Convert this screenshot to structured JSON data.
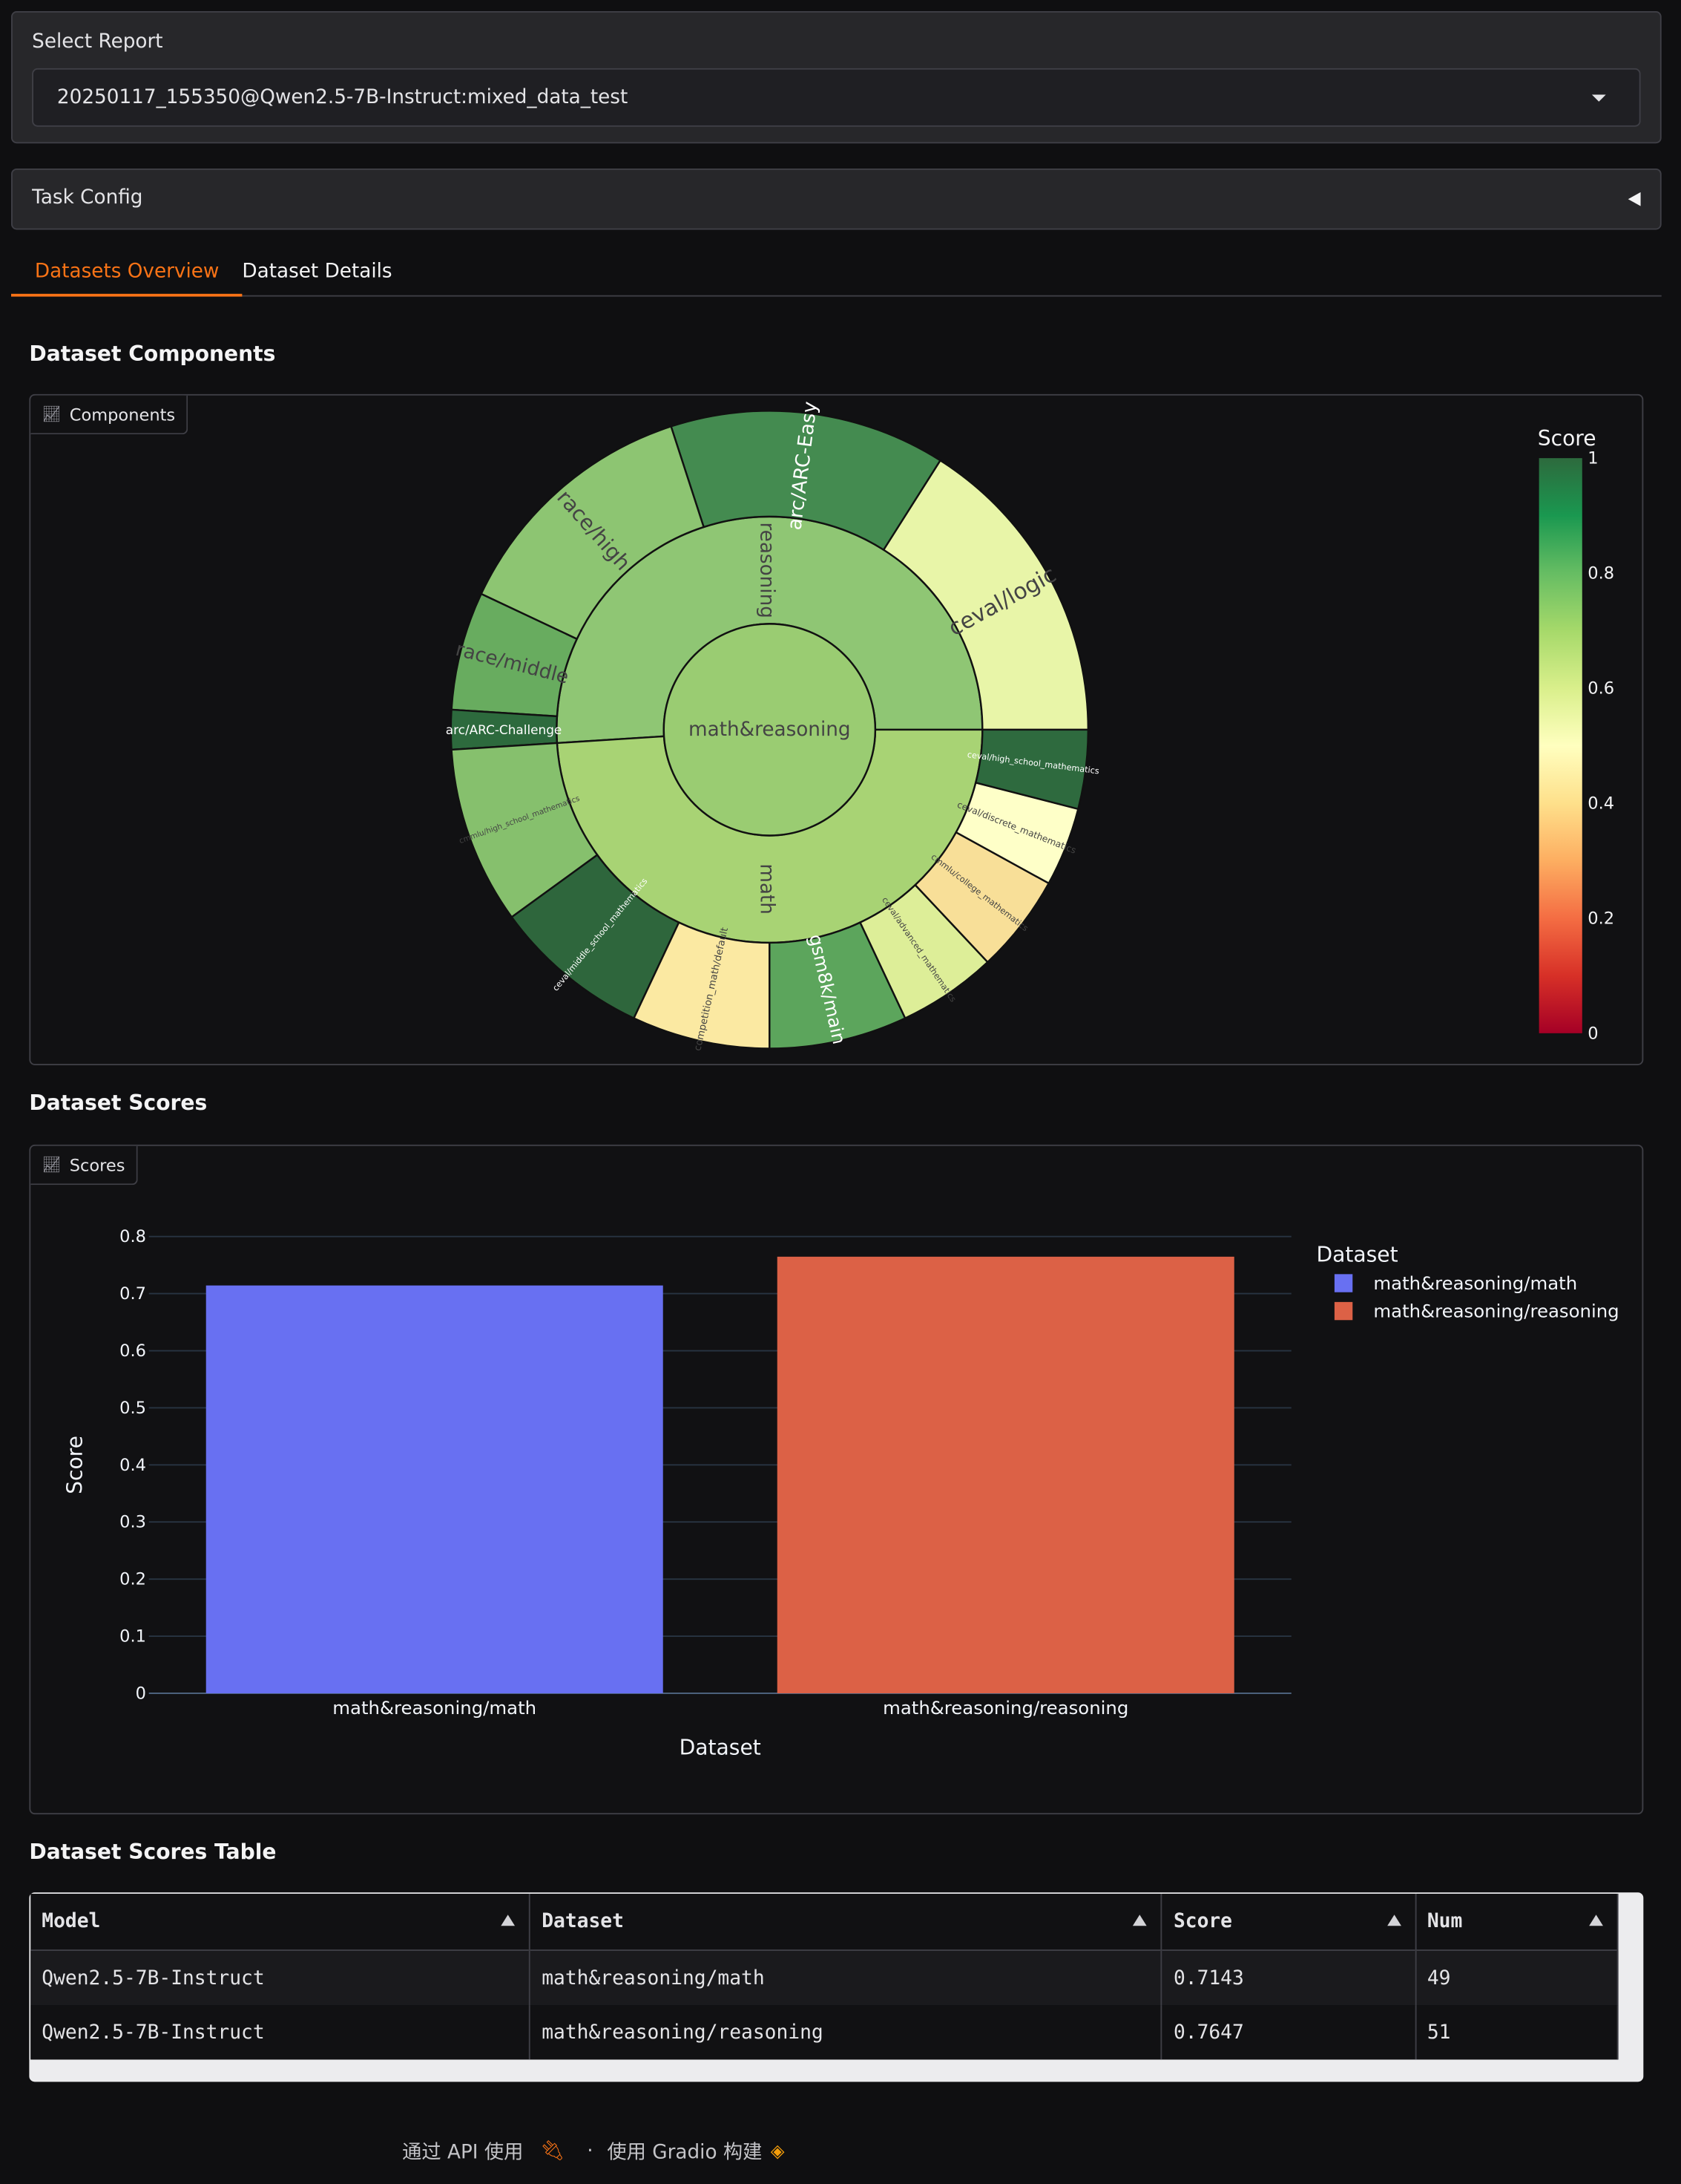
{
  "select_report": {
    "label": "Select Report",
    "value": "20250117_155350@Qwen2.5-7B-Instruct:mixed_data_test"
  },
  "task_config": {
    "label": "Task Config"
  },
  "tabs": [
    {
      "label": "Datasets Overview",
      "active": true
    },
    {
      "label": "Dataset Details",
      "active": false
    }
  ],
  "components_section": {
    "title": "Dataset Components",
    "plot_label": "Components"
  },
  "scores_section": {
    "title": "Dataset Scores",
    "plot_label": "Scores"
  },
  "table_section": {
    "title": "Dataset Scores Table"
  },
  "chart_data": [
    {
      "type": "sunburst",
      "root": {
        "label": "math&reasoning",
        "color": "#9acc72"
      },
      "colorbar": {
        "title": "Score",
        "range": [
          0,
          1
        ],
        "ticks": [
          "0",
          "0.2",
          "0.4",
          "0.6",
          "0.8",
          "1"
        ],
        "colorscale": "RdYlGn"
      },
      "groups": [
        {
          "label": "reasoning",
          "value": 51,
          "score": 0.7647,
          "color": "#8fc674",
          "children": [
            {
              "label": "ceval/logic",
              "value": 16,
              "score": 0.55,
              "color": "#e8f5a8"
            },
            {
              "label": "arc/ARC-Easy",
              "value": 14,
              "score": 0.88,
              "color": "#448b50"
            },
            {
              "label": "race/high",
              "value": 13,
              "score": 0.75,
              "color": "#8dc572"
            },
            {
              "label": "race/middle",
              "value": 6,
              "score": 0.82,
              "color": "#68ac5f"
            },
            {
              "label": "arc/ARC-Challenge",
              "value": 2,
              "score": 0.95,
              "color": "#2d6a3d"
            }
          ]
        },
        {
          "label": "math",
          "value": 49,
          "score": 0.7143,
          "color": "#a8d374",
          "children": [
            {
              "label": "cmmlu/high_school_mathematics",
              "value": 9,
              "score": 0.76,
              "color": "#86c06d"
            },
            {
              "label": "ceval/middle_school_mathematics",
              "value": 8,
              "score": 0.95,
              "color": "#2e663c"
            },
            {
              "label": "competition_math/default",
              "value": 7,
              "score": 0.43,
              "color": "#fbe9a2"
            },
            {
              "label": "gsm8k/main",
              "value": 7,
              "score": 0.84,
              "color": "#5ca55c"
            },
            {
              "label": "ceval/advanced_mathematics",
              "value": 5,
              "score": 0.6,
              "color": "#ddee98"
            },
            {
              "label": "cmmlu/college_mathematics",
              "value": 5,
              "score": 0.4,
              "color": "#f8df98"
            },
            {
              "label": "ceval/discrete_mathematics",
              "value": 4,
              "score": 0.5,
              "color": "#feffc8"
            },
            {
              "label": "ceval/high_school_mathematics",
              "value": 4,
              "score": 0.95,
              "color": "#2e6a3e"
            }
          ]
        }
      ]
    },
    {
      "type": "bar",
      "categories": [
        "math&reasoning/math",
        "math&reasoning/reasoning"
      ],
      "values": [
        0.7143,
        0.7647
      ],
      "colors": [
        "#6870f2",
        "#dc6146"
      ],
      "xlabel": "Dataset",
      "ylabel": "Score",
      "ylim": [
        0,
        0.8
      ],
      "yticks": [
        "0",
        "0.1",
        "0.2",
        "0.3",
        "0.4",
        "0.5",
        "0.6",
        "0.7",
        "0.8"
      ],
      "legend": {
        "title": "Dataset",
        "entries": [
          "math&reasoning/math",
          "math&reasoning/reasoning"
        ],
        "placement": "top-right"
      },
      "grid": true
    }
  ],
  "table": {
    "headers": [
      "Model",
      "Dataset",
      "Score",
      "Num"
    ],
    "rows": [
      [
        "Qwen2.5-7B-Instruct",
        "math&reasoning/math",
        "0.7143",
        "49"
      ],
      [
        "Qwen2.5-7B-Instruct",
        "math&reasoning/reasoning",
        "0.7647",
        "51"
      ]
    ]
  },
  "footer": {
    "api": "通过 API 使用",
    "sep": "·",
    "built": "使用 Gradio 构建"
  }
}
